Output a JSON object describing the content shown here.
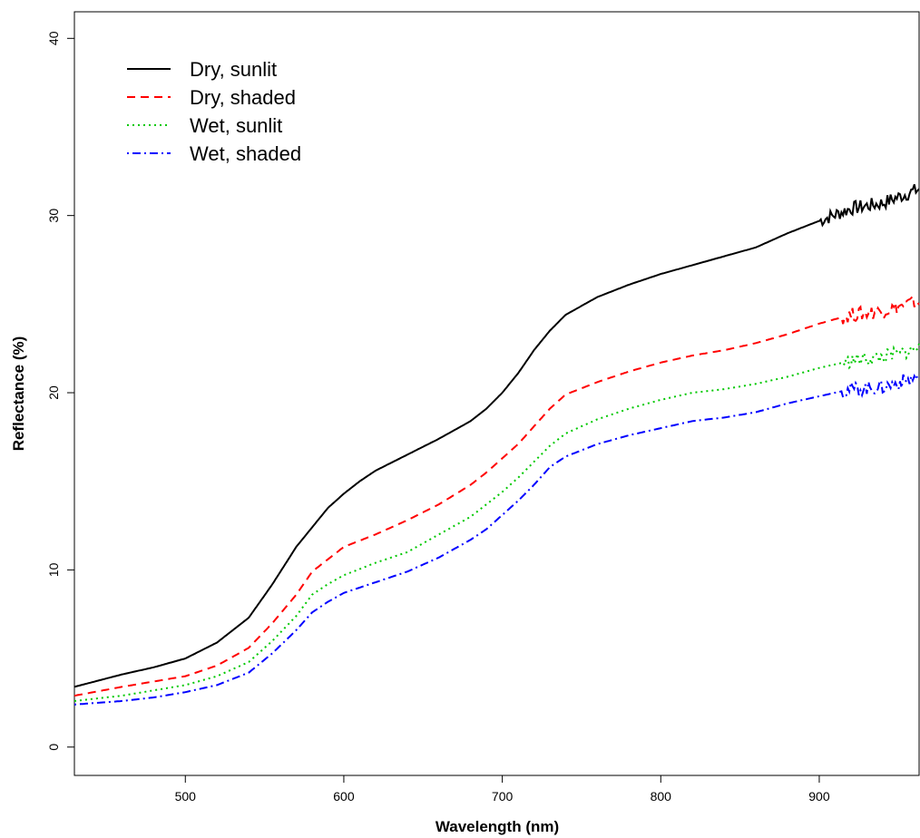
{
  "chart_data": {
    "type": "line",
    "xlabel": "Wavelength (nm)",
    "ylabel": "Reflectance (%)",
    "xlim": [
      430,
      963
    ],
    "ylim": [
      -1.6,
      41.5
    ],
    "x_ticks": [
      500,
      600,
      700,
      800,
      900
    ],
    "y_ticks": [
      0,
      10,
      20,
      30,
      40
    ],
    "grid": false,
    "legend_position": "top-left",
    "series": [
      {
        "name": "Dry, sunlit",
        "color": "#000000",
        "dash": "solid",
        "noisy_from": 900,
        "points": [
          [
            430,
            3.4
          ],
          [
            460,
            4.1
          ],
          [
            480,
            4.5
          ],
          [
            500,
            5.0
          ],
          [
            520,
            5.9
          ],
          [
            540,
            7.3
          ],
          [
            555,
            9.2
          ],
          [
            570,
            11.3
          ],
          [
            580,
            12.4
          ],
          [
            590,
            13.5
          ],
          [
            600,
            14.3
          ],
          [
            610,
            15.0
          ],
          [
            620,
            15.6
          ],
          [
            640,
            16.5
          ],
          [
            660,
            17.4
          ],
          [
            680,
            18.4
          ],
          [
            690,
            19.1
          ],
          [
            700,
            20.0
          ],
          [
            710,
            21.1
          ],
          [
            720,
            22.4
          ],
          [
            730,
            23.5
          ],
          [
            740,
            24.4
          ],
          [
            760,
            25.4
          ],
          [
            780,
            26.1
          ],
          [
            800,
            26.7
          ],
          [
            820,
            27.2
          ],
          [
            840,
            27.7
          ],
          [
            860,
            28.2
          ],
          [
            880,
            29.0
          ],
          [
            900,
            29.7
          ],
          [
            920,
            30.4
          ],
          [
            940,
            30.7
          ],
          [
            963,
            31.5
          ]
        ]
      },
      {
        "name": "Dry, shaded",
        "color": "#ff0000",
        "dash": "dashed",
        "noisy_from": 915,
        "points": [
          [
            430,
            2.9
          ],
          [
            460,
            3.4
          ],
          [
            480,
            3.7
          ],
          [
            500,
            4.0
          ],
          [
            520,
            4.6
          ],
          [
            540,
            5.6
          ],
          [
            555,
            7.0
          ],
          [
            570,
            8.6
          ],
          [
            580,
            9.9
          ],
          [
            590,
            10.6
          ],
          [
            600,
            11.3
          ],
          [
            620,
            12.0
          ],
          [
            640,
            12.8
          ],
          [
            660,
            13.7
          ],
          [
            680,
            14.8
          ],
          [
            690,
            15.5
          ],
          [
            700,
            16.3
          ],
          [
            710,
            17.1
          ],
          [
            720,
            18.1
          ],
          [
            730,
            19.1
          ],
          [
            740,
            19.9
          ],
          [
            760,
            20.6
          ],
          [
            780,
            21.2
          ],
          [
            800,
            21.7
          ],
          [
            820,
            22.1
          ],
          [
            840,
            22.4
          ],
          [
            860,
            22.8
          ],
          [
            880,
            23.3
          ],
          [
            900,
            23.9
          ],
          [
            920,
            24.4
          ],
          [
            940,
            24.6
          ],
          [
            963,
            25.2
          ]
        ]
      },
      {
        "name": "Wet, sunlit",
        "color": "#00c800",
        "dash": "dotted",
        "noisy_from": 915,
        "points": [
          [
            430,
            2.6
          ],
          [
            460,
            2.9
          ],
          [
            480,
            3.2
          ],
          [
            500,
            3.5
          ],
          [
            520,
            4.0
          ],
          [
            540,
            4.8
          ],
          [
            555,
            6.0
          ],
          [
            570,
            7.4
          ],
          [
            580,
            8.6
          ],
          [
            590,
            9.2
          ],
          [
            600,
            9.7
          ],
          [
            620,
            10.4
          ],
          [
            640,
            11.0
          ],
          [
            660,
            12.0
          ],
          [
            680,
            13.0
          ],
          [
            690,
            13.7
          ],
          [
            700,
            14.4
          ],
          [
            710,
            15.2
          ],
          [
            720,
            16.1
          ],
          [
            730,
            17.0
          ],
          [
            740,
            17.7
          ],
          [
            760,
            18.5
          ],
          [
            780,
            19.1
          ],
          [
            800,
            19.6
          ],
          [
            820,
            20.0
          ],
          [
            840,
            20.2
          ],
          [
            860,
            20.5
          ],
          [
            880,
            20.9
          ],
          [
            900,
            21.4
          ],
          [
            920,
            21.8
          ],
          [
            940,
            22.0
          ],
          [
            963,
            22.5
          ]
        ]
      },
      {
        "name": "Wet, shaded",
        "color": "#0000ff",
        "dash": "dotdash",
        "noisy_from": 915,
        "points": [
          [
            430,
            2.4
          ],
          [
            460,
            2.6
          ],
          [
            480,
            2.8
          ],
          [
            500,
            3.1
          ],
          [
            520,
            3.5
          ],
          [
            540,
            4.2
          ],
          [
            555,
            5.3
          ],
          [
            570,
            6.6
          ],
          [
            580,
            7.6
          ],
          [
            590,
            8.2
          ],
          [
            600,
            8.7
          ],
          [
            620,
            9.3
          ],
          [
            640,
            9.9
          ],
          [
            660,
            10.7
          ],
          [
            680,
            11.7
          ],
          [
            690,
            12.3
          ],
          [
            700,
            13.1
          ],
          [
            710,
            13.9
          ],
          [
            720,
            14.8
          ],
          [
            730,
            15.8
          ],
          [
            740,
            16.4
          ],
          [
            760,
            17.1
          ],
          [
            780,
            17.6
          ],
          [
            800,
            18.0
          ],
          [
            820,
            18.4
          ],
          [
            840,
            18.6
          ],
          [
            860,
            18.9
          ],
          [
            880,
            19.4
          ],
          [
            900,
            19.8
          ],
          [
            920,
            20.2
          ],
          [
            940,
            20.3
          ],
          [
            963,
            20.9
          ]
        ]
      }
    ]
  }
}
